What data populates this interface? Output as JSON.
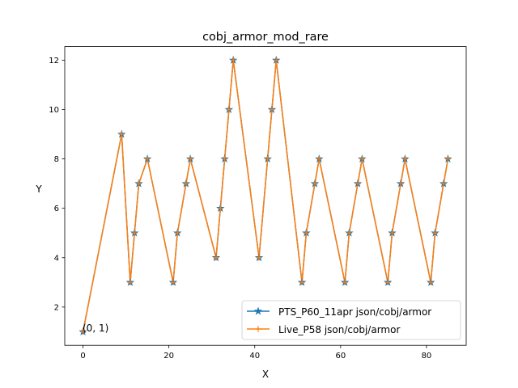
{
  "chart_data": {
    "type": "line",
    "title": "cobj_armor_mod_rare",
    "xlabel": "X",
    "ylabel": "Y",
    "xlim": [
      -4.25,
      89.25
    ],
    "ylim": [
      0.45,
      12.55
    ],
    "xticks": [
      0,
      20,
      40,
      60,
      80
    ],
    "yticks": [
      2,
      4,
      6,
      8,
      10,
      12
    ],
    "legend_position": "lower right",
    "grid": false,
    "annotation": {
      "text": "(0, 1)",
      "x": 0,
      "y": 1
    },
    "series": [
      {
        "name": "PTS_P60_11apr json/cobj/armor",
        "color": "#1f77b4",
        "marker": "star",
        "x": [
          0,
          9,
          11,
          12,
          13,
          15,
          21,
          22,
          24,
          25,
          31,
          32,
          33,
          34,
          35,
          41,
          43,
          44,
          45,
          51,
          52,
          54,
          55,
          61,
          62,
          64,
          65,
          71,
          72,
          74,
          75,
          81,
          82,
          84,
          85
        ],
        "y": [
          1,
          9,
          3,
          5,
          7,
          8,
          3,
          5,
          7,
          8,
          4,
          6,
          8,
          10,
          12,
          4,
          8,
          10,
          12,
          3,
          5,
          7,
          8,
          3,
          5,
          7,
          8,
          3,
          5,
          7,
          8,
          3,
          5,
          7,
          8
        ]
      },
      {
        "name": "Live_P58 json/cobj/armor",
        "color": "#ff7f0e",
        "marker": "plus",
        "x": [
          0,
          9,
          11,
          12,
          13,
          15,
          21,
          22,
          24,
          25,
          31,
          32,
          33,
          34,
          35,
          41,
          43,
          44,
          45,
          51,
          52,
          54,
          55,
          61,
          62,
          64,
          65,
          71,
          72,
          74,
          75,
          81,
          82,
          84,
          85
        ],
        "y": [
          1,
          9,
          3,
          5,
          7,
          8,
          3,
          5,
          7,
          8,
          4,
          6,
          8,
          10,
          12,
          4,
          8,
          10,
          12,
          3,
          5,
          7,
          8,
          3,
          5,
          7,
          8,
          3,
          5,
          7,
          8,
          3,
          5,
          7,
          8
        ]
      }
    ]
  }
}
